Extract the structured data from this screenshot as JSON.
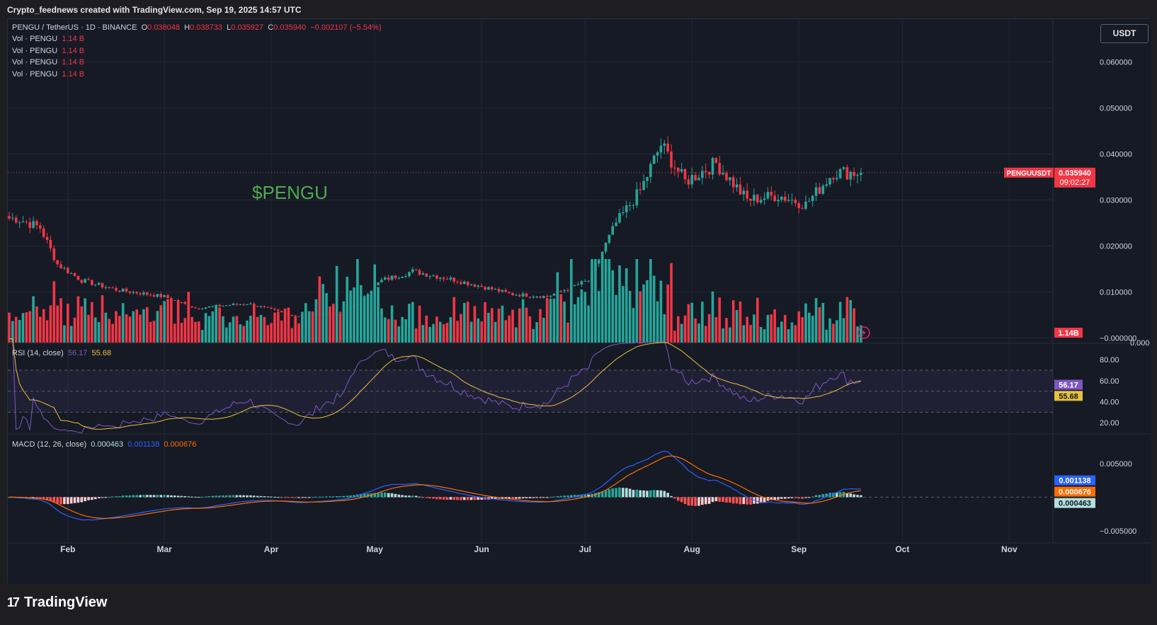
{
  "header": {
    "text": "Crypto_feednews created with TradingView.com, Sep 19, 2025 14:57 UTC"
  },
  "legend": {
    "symbol": "PENGU / TetherUS · 1D · BINANCE",
    "o_label": "O",
    "o": "0.038048",
    "h_label": "H",
    "h": "0.038733",
    "l_label": "L",
    "l": "0.035927",
    "c_label": "C",
    "c": "0.035940",
    "change": "−0.002107 (−5.54%)",
    "vol_lines": [
      {
        "label": "Vol · PENGU",
        "value": "1.14 B"
      },
      {
        "label": "Vol · PENGU",
        "value": "1.14 B"
      },
      {
        "label": "Vol · PENGU",
        "value": "1.14 B"
      },
      {
        "label": "Vol · PENGU",
        "value": "1.14 B"
      }
    ]
  },
  "currency_button": "USDT",
  "watermark": "$PENGU",
  "price_axis_ticks": [
    "0.060000",
    "0.050000",
    "0.040000",
    "0.030000",
    "0.020000",
    "0.010000",
    "−0.000000",
    "0.000"
  ],
  "price_tag": {
    "symbol": "PENGUUSDT",
    "price": "0.035940",
    "countdown": "09:02:27"
  },
  "volume_tag": "1.14B",
  "rsi": {
    "label": "RSI (14, close)",
    "value": "56.17",
    "ma": "55.68",
    "ticks": [
      "80.00",
      "60.00",
      "40.00",
      "20.00"
    ]
  },
  "macd": {
    "label": "MACD (12, 26, close)",
    "hist": "0.000463",
    "macd": "0.001138",
    "signal": "0.000676",
    "ticks": [
      "0.005000",
      "−0.005000"
    ]
  },
  "time_axis": [
    "Feb",
    "Mar",
    "Apr",
    "May",
    "Jun",
    "Jul",
    "Aug",
    "Sep",
    "Oct",
    "Nov"
  ],
  "brand": "TradingView",
  "colors": {
    "up": "#26a69a",
    "down": "#f23645",
    "rsi_line": "#7e57c2",
    "rsi_ma": "#e6c13d",
    "macd_line": "#2962ff",
    "signal_line": "#ff6d00",
    "bg": "#161a25"
  },
  "chart_data": {
    "type": "candlestick",
    "symbol": "PENGUUSDT",
    "interval": "1D",
    "price_range": [
      -0.001,
      0.069
    ],
    "anchor_points_date_close": [
      [
        "2025-01-17",
        0.026
      ],
      [
        "2025-01-24",
        0.024
      ],
      [
        "2025-01-29",
        0.016
      ],
      [
        "2025-02-05",
        0.0125
      ],
      [
        "2025-02-15",
        0.0105
      ],
      [
        "2025-03-01",
        0.009
      ],
      [
        "2025-03-10",
        0.0065
      ],
      [
        "2025-03-25",
        0.0075
      ],
      [
        "2025-04-08",
        0.0048
      ],
      [
        "2025-04-22",
        0.0055
      ],
      [
        "2025-05-03",
        0.0125
      ],
      [
        "2025-05-12",
        0.0145
      ],
      [
        "2025-05-25",
        0.0125
      ],
      [
        "2025-06-10",
        0.0095
      ],
      [
        "2025-06-20",
        0.009
      ],
      [
        "2025-07-02",
        0.0125
      ],
      [
        "2025-07-10",
        0.025
      ],
      [
        "2025-07-17",
        0.032
      ],
      [
        "2025-07-23",
        0.042
      ],
      [
        "2025-07-30",
        0.034
      ],
      [
        "2025-08-08",
        0.038
      ],
      [
        "2025-08-17",
        0.03
      ],
      [
        "2025-08-26",
        0.031
      ],
      [
        "2025-09-03",
        0.029
      ],
      [
        "2025-09-11",
        0.036
      ],
      [
        "2025-09-19",
        0.03594
      ]
    ],
    "rsi_range": [
      10,
      95
    ],
    "macd_range": [
      -0.0068,
      0.0093
    ]
  }
}
